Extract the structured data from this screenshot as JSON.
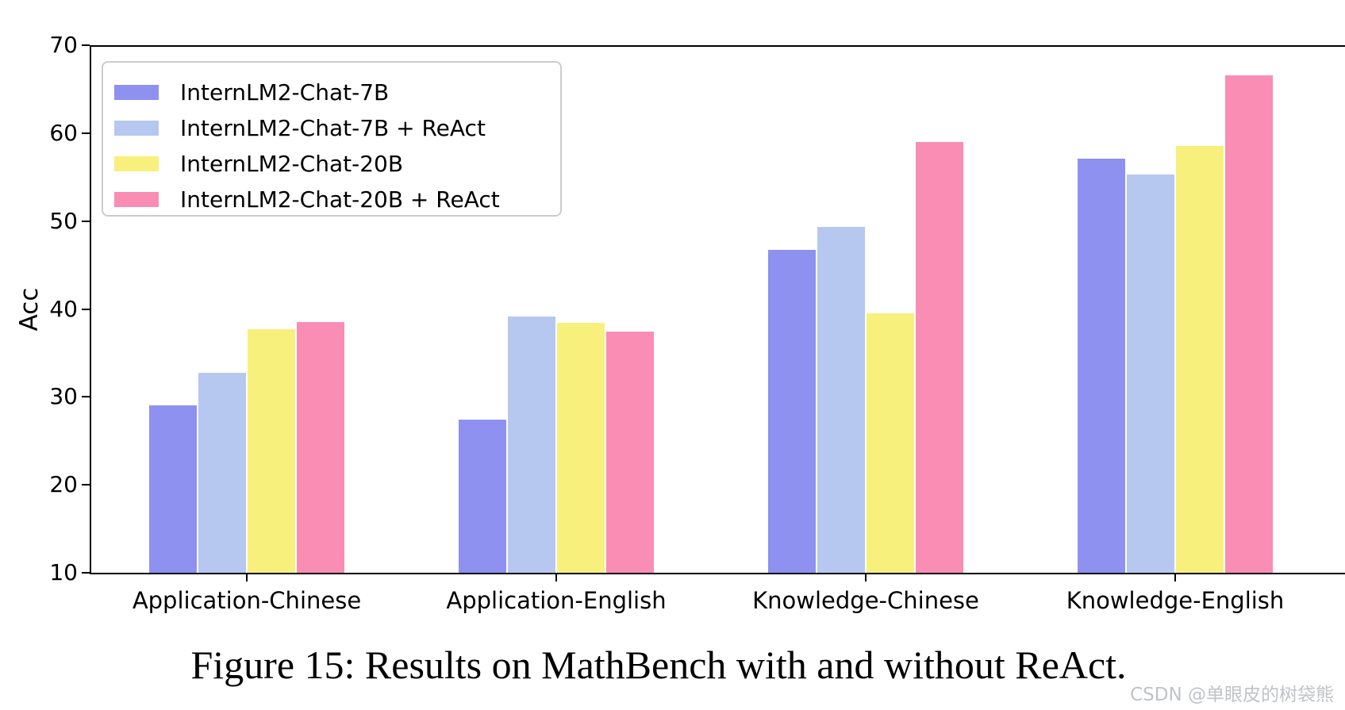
{
  "figure": {
    "caption": "Figure 15: Results on MathBench with and without ReAct.",
    "watermark": "CSDN @单眼皮的树袋熊"
  },
  "chart_data": {
    "type": "bar",
    "title": "",
    "xlabel": "",
    "ylabel": "Acc",
    "ylim": [
      10,
      70
    ],
    "yticks": [
      10,
      20,
      30,
      40,
      50,
      60,
      70
    ],
    "grid": false,
    "legend_position": "upper-left",
    "categories": [
      "Application-Chinese",
      "Application-English",
      "Knowledge-Chinese",
      "Knowledge-English"
    ],
    "series": [
      {
        "name": "InternLM2-Chat-7B",
        "color": "#8e91ef",
        "values": [
          29.0,
          27.4,
          46.7,
          57.1
        ]
      },
      {
        "name": "InternLM2-Chat-7B + ReAct",
        "color": "#b6c7f0",
        "values": [
          32.7,
          39.1,
          49.3,
          55.3
        ]
      },
      {
        "name": "InternLM2-Chat-20B",
        "color": "#f8f07c",
        "values": [
          37.7,
          38.4,
          39.5,
          58.5
        ]
      },
      {
        "name": "InternLM2-Chat-20B + ReAct",
        "color": "#f98db4",
        "values": [
          38.5,
          37.4,
          59.0,
          66.6
        ]
      }
    ]
  }
}
